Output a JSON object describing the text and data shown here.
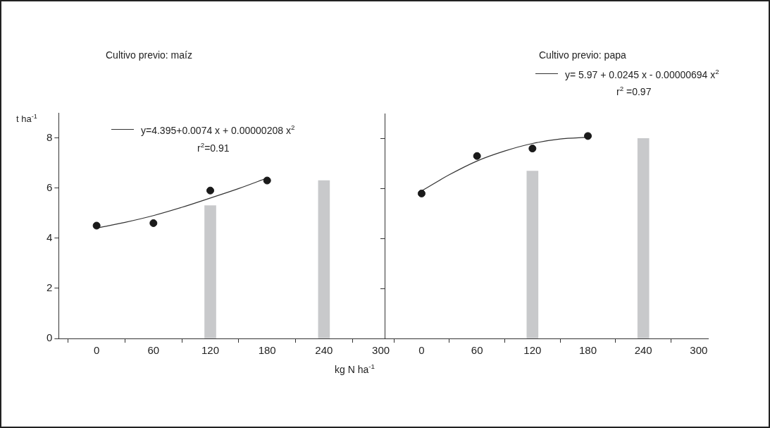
{
  "chart_data": [
    {
      "type": "bar",
      "title": "Cultivo previo: maíz",
      "ylabel": "t ha$^{-1}$",
      "xlabel": "kg N ha$^{-1}$",
      "xlim": [
        -40,
        310
      ],
      "xticks": [
        0,
        60,
        120,
        180,
        240,
        300
      ],
      "ylim": [
        0,
        9
      ],
      "yticks": [
        0,
        2,
        4,
        6,
        8
      ],
      "grid": false,
      "legend": "top",
      "annotations": [
        "r$^{2}$=0.91"
      ],
      "series": [
        {
          "type": "bar",
          "color": "#c8c9cb",
          "x": [
            120,
            240
          ],
          "values": [
            5.3,
            6.3
          ]
        },
        {
          "type": "scatter",
          "marker": "circle",
          "color": "#1a1a1a",
          "x": [
            0,
            60,
            120,
            180
          ],
          "values": [
            4.5,
            4.6,
            5.9,
            6.3
          ]
        },
        {
          "type": "line",
          "marker": "none",
          "name": "y=4.395+0.0074 x + 0.00000208 x$^{2}$",
          "color": "#333333",
          "x": [
            0,
            30,
            60,
            90,
            120,
            150,
            180
          ],
          "values": [
            4.4,
            4.63,
            4.9,
            5.23,
            5.6,
            5.98,
            6.4
          ]
        }
      ]
    },
    {
      "type": "bar",
      "title": "Cultivo previo: papa",
      "xlim": [
        -40,
        310
      ],
      "xticks": [
        0,
        60,
        120,
        180,
        240,
        300
      ],
      "ylim": [
        0,
        9
      ],
      "yticks": [
        0,
        2,
        4,
        6,
        8
      ],
      "grid": false,
      "legend": "top",
      "tick_labels": "x",
      "annotations": [
        "r$^{2}$ =0.97"
      ],
      "series": [
        {
          "type": "bar",
          "color": "#c8c9cb",
          "x": [
            120,
            240
          ],
          "values": [
            6.7,
            8.0
          ]
        },
        {
          "type": "scatter",
          "marker": "circle",
          "color": "#1a1a1a",
          "x": [
            0,
            60,
            120,
            180
          ],
          "values": [
            5.8,
            7.3,
            7.6,
            8.1
          ]
        },
        {
          "type": "line",
          "marker": "none",
          "name": "y= 5.97 + 0.0245 x - 0.00000694 x$^{2}$",
          "color": "#333333",
          "x": [
            0,
            30,
            60,
            90,
            120,
            150,
            180
          ],
          "values": [
            5.9,
            6.55,
            7.1,
            7.5,
            7.8,
            7.98,
            8.05
          ]
        }
      ]
    }
  ]
}
